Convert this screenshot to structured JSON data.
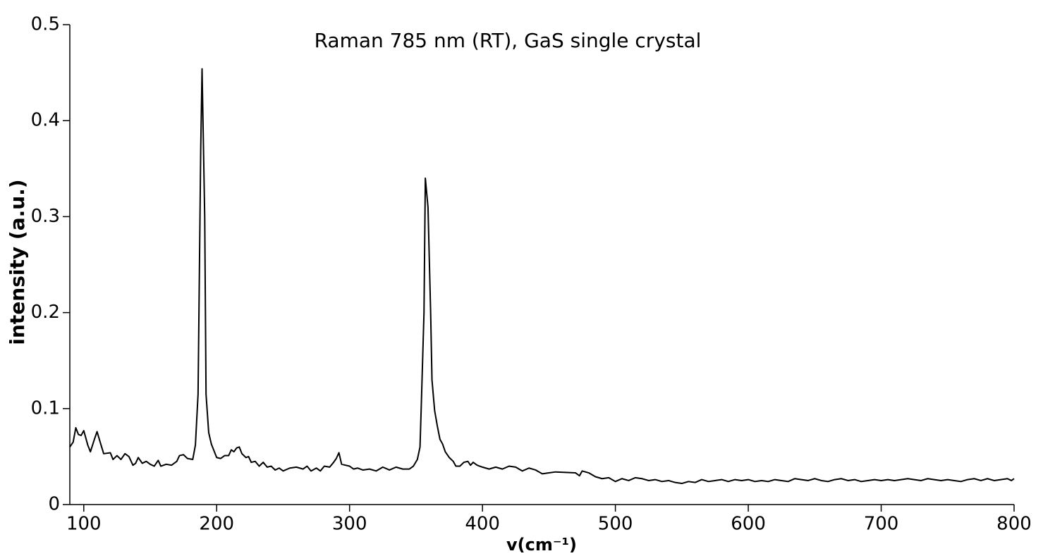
{
  "chart_data": {
    "type": "line",
    "title": "Raman 785 nm (RT), GaS single crystal",
    "x_label": "v(cm⁻¹)",
    "y_label": "intensity (a.u.)",
    "xlim": [
      89.5,
      800
    ],
    "xticks": [
      100,
      200,
      300,
      400,
      500,
      600,
      700,
      800
    ],
    "ylim": [
      0,
      0.5
    ],
    "yticks": [
      0,
      0.1,
      0.2,
      0.3,
      0.4,
      0.5
    ],
    "grid": false,
    "series": [
      {
        "color": "#000000",
        "x": [
          89.5,
          92,
          94,
          96,
          98,
          100,
          103,
          105,
          108,
          110,
          113,
          115,
          120,
          122,
          125,
          128,
          131,
          134,
          137,
          139,
          141,
          144,
          147,
          150,
          153,
          156,
          158,
          162,
          166,
          170,
          172,
          175,
          178,
          182,
          184,
          186,
          188,
          189,
          191,
          192,
          194,
          196,
          198,
          200,
          203,
          206,
          209,
          211,
          213,
          215,
          217,
          219,
          222,
          224,
          226,
          229,
          232,
          235,
          238,
          241,
          244,
          247,
          250,
          255,
          260,
          265,
          268,
          271,
          275,
          278,
          281,
          285,
          288,
          290,
          292,
          294,
          297,
          300,
          303,
          306,
          310,
          315,
          320,
          325,
          330,
          335,
          340,
          345,
          348,
          351,
          353,
          354,
          356,
          357,
          359,
          361,
          362,
          364,
          366,
          368,
          370,
          372,
          375,
          378,
          380,
          383,
          386,
          389,
          391,
          393,
          396,
          400,
          405,
          410,
          415,
          420,
          425,
          430,
          435,
          440,
          445,
          450,
          455,
          470,
          473,
          475,
          480,
          485,
          490,
          495,
          500,
          505,
          510,
          515,
          520,
          525,
          530,
          535,
          540,
          545,
          550,
          555,
          560,
          565,
          570,
          575,
          580,
          585,
          590,
          595,
          600,
          605,
          610,
          615,
          620,
          625,
          630,
          635,
          640,
          645,
          650,
          655,
          660,
          665,
          670,
          675,
          680,
          685,
          690,
          695,
          700,
          705,
          710,
          715,
          720,
          725,
          730,
          735,
          740,
          745,
          750,
          755,
          760,
          765,
          770,
          775,
          780,
          785,
          790,
          795,
          798,
          800
        ],
        "values": [
          0.06,
          0.065,
          0.08,
          0.073,
          0.072,
          0.077,
          0.062,
          0.055,
          0.068,
          0.076,
          0.062,
          0.053,
          0.054,
          0.047,
          0.051,
          0.047,
          0.053,
          0.05,
          0.041,
          0.043,
          0.049,
          0.043,
          0.045,
          0.042,
          0.04,
          0.046,
          0.04,
          0.042,
          0.041,
          0.045,
          0.051,
          0.052,
          0.048,
          0.047,
          0.062,
          0.115,
          0.37,
          0.454,
          0.3,
          0.115,
          0.075,
          0.063,
          0.056,
          0.049,
          0.048,
          0.051,
          0.051,
          0.057,
          0.055,
          0.059,
          0.06,
          0.053,
          0.049,
          0.05,
          0.044,
          0.045,
          0.04,
          0.044,
          0.039,
          0.04,
          0.036,
          0.038,
          0.035,
          0.038,
          0.039,
          0.037,
          0.04,
          0.035,
          0.038,
          0.035,
          0.04,
          0.039,
          0.044,
          0.048,
          0.054,
          0.042,
          0.041,
          0.04,
          0.037,
          0.038,
          0.036,
          0.037,
          0.035,
          0.039,
          0.036,
          0.039,
          0.037,
          0.037,
          0.04,
          0.047,
          0.06,
          0.105,
          0.2,
          0.34,
          0.31,
          0.2,
          0.13,
          0.098,
          0.082,
          0.068,
          0.063,
          0.055,
          0.049,
          0.045,
          0.04,
          0.04,
          0.044,
          0.045,
          0.041,
          0.044,
          0.041,
          0.039,
          0.037,
          0.039,
          0.037,
          0.04,
          0.039,
          0.035,
          0.038,
          0.036,
          0.032,
          0.033,
          0.034,
          0.033,
          0.03,
          0.035,
          0.033,
          0.029,
          0.027,
          0.028,
          0.024,
          0.027,
          0.025,
          0.028,
          0.027,
          0.025,
          0.026,
          0.024,
          0.025,
          0.023,
          0.022,
          0.024,
          0.023,
          0.026,
          0.024,
          0.025,
          0.026,
          0.024,
          0.026,
          0.025,
          0.026,
          0.024,
          0.025,
          0.024,
          0.026,
          0.025,
          0.024,
          0.027,
          0.026,
          0.025,
          0.027,
          0.025,
          0.024,
          0.026,
          0.027,
          0.025,
          0.026,
          0.024,
          0.025,
          0.026,
          0.025,
          0.026,
          0.025,
          0.026,
          0.027,
          0.026,
          0.025,
          0.027,
          0.026,
          0.025,
          0.026,
          0.025,
          0.024,
          0.026,
          0.027,
          0.025,
          0.027,
          0.025,
          0.026,
          0.027,
          0.025,
          0.027
        ]
      }
    ]
  }
}
